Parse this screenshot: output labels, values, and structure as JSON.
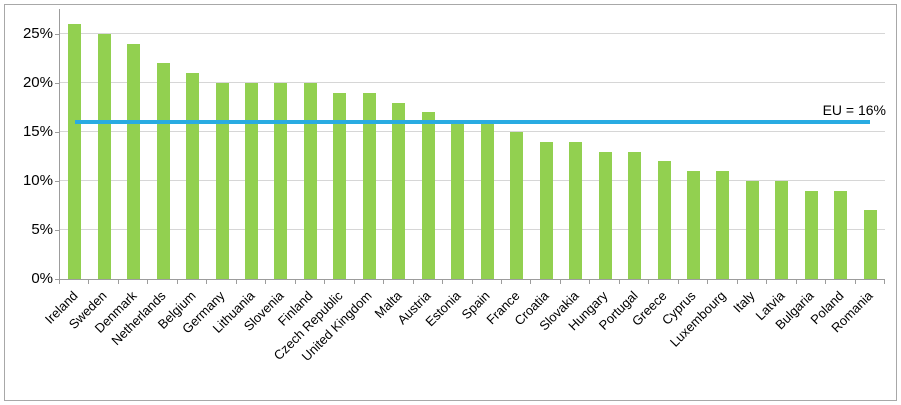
{
  "chart_data": {
    "type": "bar",
    "title": "",
    "categories": [
      "Ireland",
      "Sweden",
      "Denmark",
      "Netherlands",
      "Belgium",
      "Germany",
      "Lithuania",
      "Slovenia",
      "Finland",
      "Czech Republic",
      "United Kingdom",
      "Malta",
      "Austria",
      "Estonia",
      "Spain",
      "France",
      "Croatia",
      "Slovakia",
      "Hungary",
      "Portugal",
      "Greece",
      "Cyprus",
      "Luxembourg",
      "Italy",
      "Latvia",
      "Bulgaria",
      "Poland",
      "Romania"
    ],
    "values": [
      26,
      25,
      24,
      22,
      21,
      20,
      20,
      20,
      20,
      19,
      19,
      18,
      17,
      16,
      16,
      15,
      14,
      14,
      13,
      13,
      12,
      11,
      11,
      10,
      10,
      9,
      9,
      7
    ],
    "unit": "%",
    "bar_color": "#92D050",
    "reference_line": {
      "label": "EU = 16%",
      "value": 16,
      "color": "#29ABE2"
    },
    "y_ticks": [
      {
        "value": 0,
        "label": "0%"
      },
      {
        "value": 5,
        "label": "5%"
      },
      {
        "value": 10,
        "label": "10%"
      },
      {
        "value": 15,
        "label": "15%"
      },
      {
        "value": 20,
        "label": "20%"
      },
      {
        "value": 25,
        "label": "25%"
      }
    ],
    "ylim": [
      0,
      27.5
    ],
    "grid": true,
    "legend_position": "none",
    "x_tick_rotation_deg": 45
  }
}
